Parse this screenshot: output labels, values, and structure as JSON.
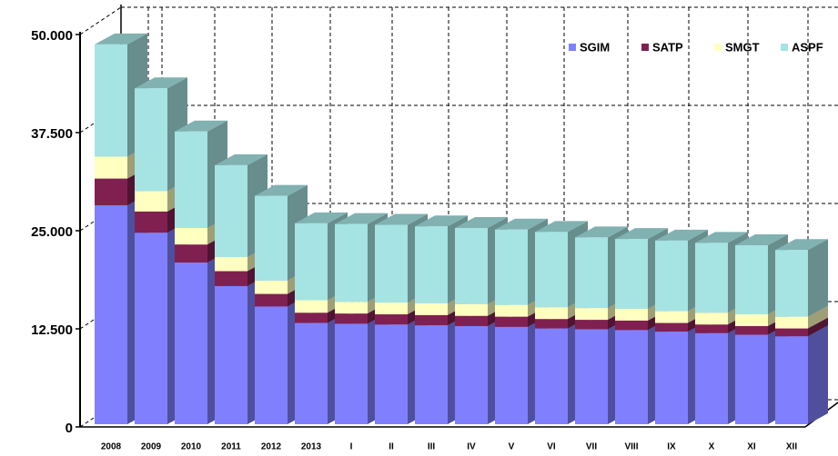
{
  "chart_data": {
    "type": "bar3d_stacked",
    "categories": [
      "2008",
      "2009",
      "2010",
      "2011",
      "2012",
      "2013",
      "I",
      "II",
      "III",
      "IV",
      "V",
      "VI",
      "VII",
      "VIII",
      "IX",
      "X",
      "XI",
      "XII"
    ],
    "series": [
      {
        "name": "SGIM",
        "color": "#8080ff",
        "values": [
          27900,
          24400,
          20600,
          17600,
          15000,
          12900,
          12800,
          12700,
          12600,
          12500,
          12400,
          12200,
          12100,
          12000,
          11800,
          11600,
          11400,
          11200
        ]
      },
      {
        "name": "SATP",
        "color": "#802050",
        "values": [
          3400,
          2700,
          2300,
          1900,
          1600,
          1300,
          1300,
          1300,
          1300,
          1300,
          1300,
          1200,
          1200,
          1200,
          1100,
          1100,
          1100,
          1000
        ]
      },
      {
        "name": "SMGT",
        "color": "#ffffc0",
        "values": [
          2800,
          2600,
          2100,
          1800,
          1700,
          1600,
          1500,
          1500,
          1500,
          1500,
          1500,
          1500,
          1500,
          1500,
          1500,
          1500,
          1500,
          1500
        ]
      },
      {
        "name": "ASPF",
        "color": "#a6e3e3",
        "values": [
          14300,
          13100,
          12300,
          11700,
          10800,
          9800,
          9900,
          9900,
          9800,
          9700,
          9600,
          9600,
          9000,
          8900,
          9000,
          8900,
          8800,
          8500
        ]
      }
    ],
    "ylim": [
      0,
      50000
    ],
    "yticks": [
      0,
      {
        "value": 12500,
        "label": "12.500"
      },
      {
        "value": 25000,
        "label": "25.000"
      },
      {
        "value": 37500,
        "label": "37.500"
      },
      {
        "value": 50000,
        "label": "50.000"
      }
    ],
    "grid": true,
    "legend": "top-right"
  }
}
